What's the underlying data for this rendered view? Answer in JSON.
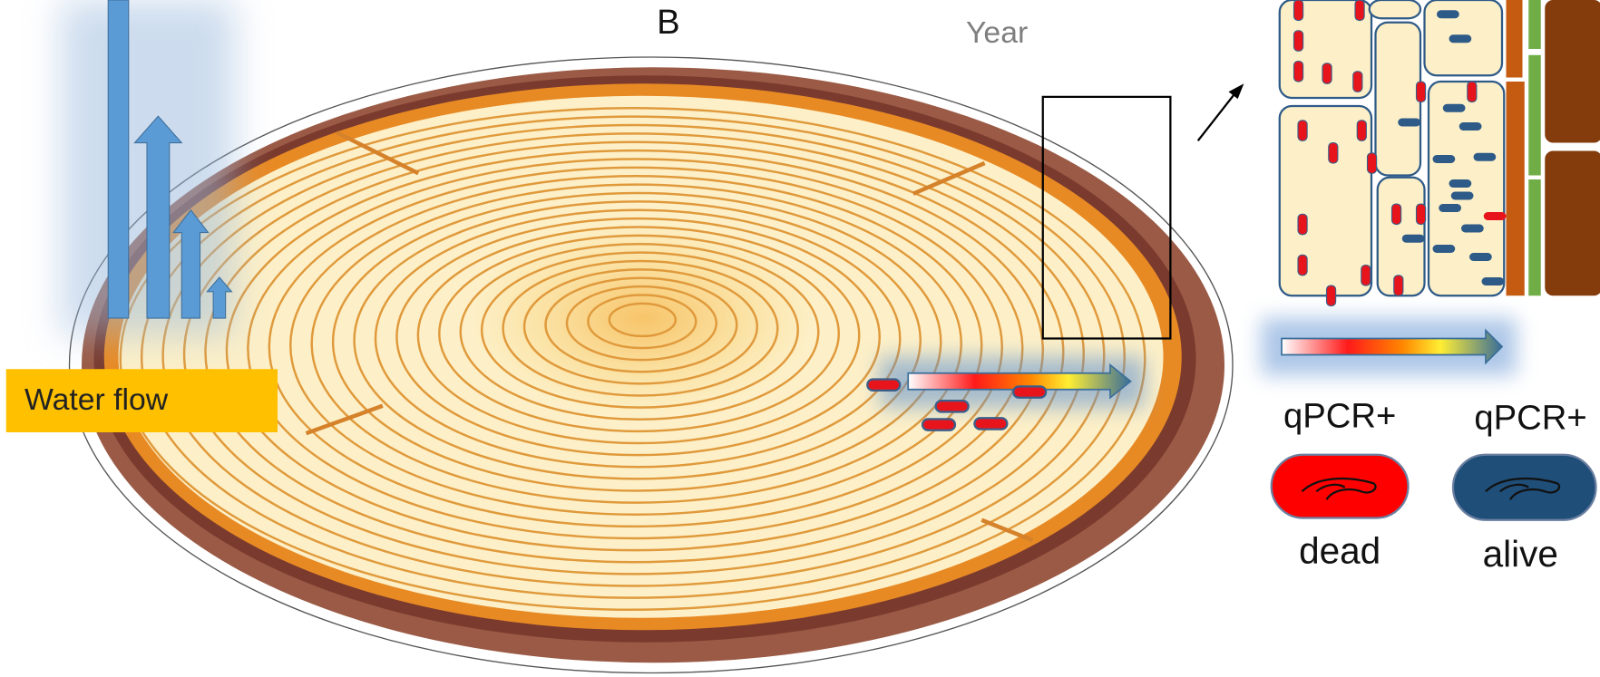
{
  "panel_label": "B",
  "year_label": "Year",
  "water_flow_label": "Water flow",
  "legend": {
    "items": [
      {
        "label": "qPCR+",
        "status": "dead"
      },
      {
        "label": "qPCR+",
        "status": "alive"
      }
    ]
  }
}
